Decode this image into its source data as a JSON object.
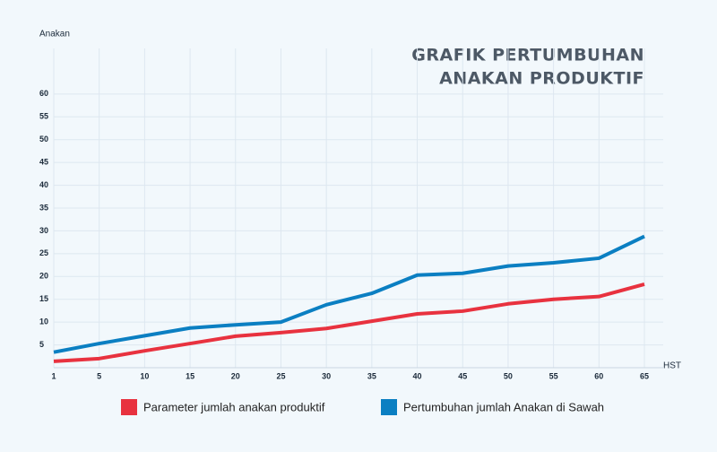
{
  "chart_data": {
    "type": "line",
    "title_lines": [
      "GRAFIK PERTUMBUHAN",
      "ANAKAN PRODUKTIF"
    ],
    "y_label": "Anakan",
    "x_label": "HST",
    "categories": [
      "1",
      "5",
      "10",
      "15",
      "20",
      "25",
      "30",
      "35",
      "40",
      "45",
      "50",
      "55",
      "60",
      "65"
    ],
    "series": [
      {
        "name": "Parameter jumlah anakan produktif",
        "color": "#e8323f",
        "values": [
          1.4,
          2.0,
          3.7,
          5.3,
          6.9,
          7.7,
          8.6,
          10.2,
          11.8,
          12.4,
          14.0,
          15.0,
          15.6,
          18.3
        ]
      },
      {
        "name": "Pertumbuhan jumlah Anakan di Sawah",
        "color": "#0b7fc2",
        "values": [
          3.4,
          5.3,
          7.0,
          8.7,
          9.4,
          10.0,
          13.8,
          16.3,
          20.3,
          20.7,
          22.3,
          23.0,
          24.0,
          28.8
        ]
      }
    ],
    "ylim": [
      0,
      70
    ],
    "yticks": [
      5,
      10,
      15,
      20,
      25,
      30,
      35,
      40,
      45,
      50,
      55,
      60
    ],
    "grid": true
  }
}
